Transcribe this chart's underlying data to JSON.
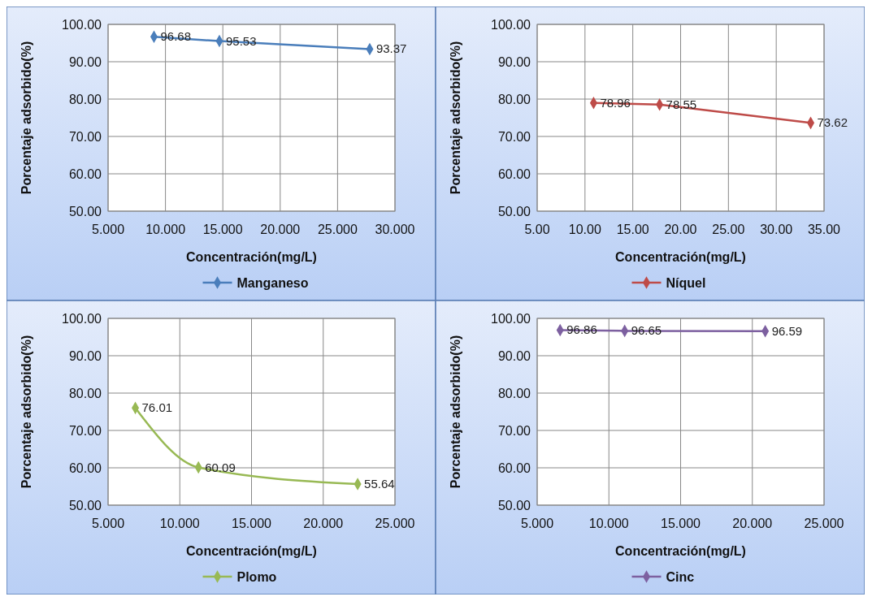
{
  "chart_data": [
    {
      "type": "line",
      "xlabel": "Concentración(mg/L)",
      "ylabel": "Porcentaje adsorbido(%)",
      "x": [
        9.0,
        14.7,
        27.8
      ],
      "series": [
        {
          "name": "Manganeso",
          "color": "#4a7ebb",
          "values": [
            96.68,
            95.53,
            93.37
          ]
        }
      ],
      "xlim": [
        5,
        30
      ],
      "ylim": [
        50,
        100
      ],
      "xticks": [
        {
          "value": 5,
          "label": "5.000"
        },
        {
          "value": 10,
          "label": "10.000"
        },
        {
          "value": 15,
          "label": "15.000"
        },
        {
          "value": 20,
          "label": "20.000"
        },
        {
          "value": 25,
          "label": "25.000"
        },
        {
          "value": 30,
          "label": "30.000"
        }
      ],
      "yticks": [
        {
          "value": 50,
          "label": "50.00"
        },
        {
          "value": 60,
          "label": "60.00"
        },
        {
          "value": 70,
          "label": "70.00"
        },
        {
          "value": 80,
          "label": "80.00"
        },
        {
          "value": 90,
          "label": "90.00"
        },
        {
          "value": 100,
          "label": "100.00"
        }
      ],
      "grid": true,
      "legend": "bottom",
      "marker": "diamond",
      "data_labels": true
    },
    {
      "type": "line",
      "xlabel": "Concentración(mg/L)",
      "ylabel": "Porcentaje adsorbido(%)",
      "x": [
        10.9,
        17.8,
        33.6
      ],
      "series": [
        {
          "name": "Níquel",
          "color": "#be4b48",
          "values": [
            78.96,
            78.55,
            73.62
          ]
        }
      ],
      "xlim": [
        5,
        35
      ],
      "ylim": [
        50,
        100
      ],
      "xticks": [
        {
          "value": 5,
          "label": "5.00"
        },
        {
          "value": 10,
          "label": "10.00"
        },
        {
          "value": 15,
          "label": "15.00"
        },
        {
          "value": 20,
          "label": "20.00"
        },
        {
          "value": 25,
          "label": "25.00"
        },
        {
          "value": 30,
          "label": "30.00"
        },
        {
          "value": 35,
          "label": "35.00"
        }
      ],
      "yticks": [
        {
          "value": 50,
          "label": "50.00"
        },
        {
          "value": 60,
          "label": "60.00"
        },
        {
          "value": 70,
          "label": "70.00"
        },
        {
          "value": 80,
          "label": "80.00"
        },
        {
          "value": 90,
          "label": "90.00"
        },
        {
          "value": 100,
          "label": "100.00"
        }
      ],
      "grid": true,
      "legend": "bottom",
      "marker": "diamond",
      "data_labels": true
    },
    {
      "type": "line",
      "xlabel": "Concentración(mg/L)",
      "ylabel": "Porcentaje adsorbido(%)",
      "x": [
        6.9,
        11.3,
        22.4
      ],
      "series": [
        {
          "name": "Plomo",
          "color": "#98b954",
          "values": [
            76.01,
            60.09,
            55.64
          ]
        }
      ],
      "xlim": [
        5,
        25
      ],
      "ylim": [
        50,
        100
      ],
      "xticks": [
        {
          "value": 5,
          "label": "5.000"
        },
        {
          "value": 10,
          "label": "10.000"
        },
        {
          "value": 15,
          "label": "15.000"
        },
        {
          "value": 20,
          "label": "20.000"
        },
        {
          "value": 25,
          "label": "25.000"
        }
      ],
      "yticks": [
        {
          "value": 50,
          "label": "50.00"
        },
        {
          "value": 60,
          "label": "60.00"
        },
        {
          "value": 70,
          "label": "70.00"
        },
        {
          "value": 80,
          "label": "80.00"
        },
        {
          "value": 90,
          "label": "90.00"
        },
        {
          "value": 100,
          "label": "100.00"
        }
      ],
      "grid": true,
      "legend": "bottom",
      "marker": "diamond",
      "data_labels": true
    },
    {
      "type": "line",
      "xlabel": "Concentración(mg/L)",
      "ylabel": "Porcentaje adsorbido(%)",
      "x": [
        6.6,
        11.1,
        20.9
      ],
      "series": [
        {
          "name": "Cinc",
          "color": "#7d60a0",
          "values": [
            96.86,
            96.65,
            96.59
          ]
        }
      ],
      "xlim": [
        5,
        25
      ],
      "ylim": [
        50,
        100
      ],
      "xticks": [
        {
          "value": 5,
          "label": "5.000"
        },
        {
          "value": 10,
          "label": "10.000"
        },
        {
          "value": 15,
          "label": "15.000"
        },
        {
          "value": 20,
          "label": "20.000"
        },
        {
          "value": 25,
          "label": "25.000"
        }
      ],
      "yticks": [
        {
          "value": 50,
          "label": "50.00"
        },
        {
          "value": 60,
          "label": "60.00"
        },
        {
          "value": 70,
          "label": "70.00"
        },
        {
          "value": 80,
          "label": "80.00"
        },
        {
          "value": 90,
          "label": "90.00"
        },
        {
          "value": 100,
          "label": "100.00"
        }
      ],
      "grid": true,
      "legend": "bottom",
      "marker": "diamond",
      "data_labels": true
    }
  ]
}
